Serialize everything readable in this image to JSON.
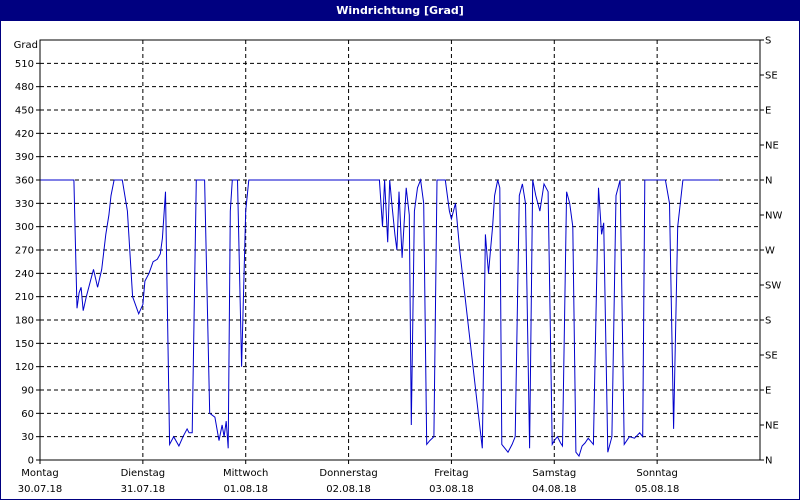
{
  "window": {
    "title": "Windrichtung [Grad]"
  },
  "colors": {
    "titlebar": "#000080",
    "series": "#0000cc",
    "grid": "#000000",
    "frame": "#000080"
  },
  "chart_data": {
    "type": "line",
    "title": "Windrichtung [Grad]",
    "ylabel": "Grad",
    "xlabel": "",
    "ylim": [
      0,
      540
    ],
    "yticks": [
      0,
      30,
      60,
      90,
      120,
      150,
      180,
      210,
      240,
      270,
      300,
      330,
      360,
      390,
      420,
      450,
      480,
      510
    ],
    "y2ticks": [
      {
        "value": 0,
        "label": "N"
      },
      {
        "value": 45,
        "label": "NE"
      },
      {
        "value": 90,
        "label": "E"
      },
      {
        "value": 135,
        "label": "SE"
      },
      {
        "value": 180,
        "label": "S"
      },
      {
        "value": 225,
        "label": "SW"
      },
      {
        "value": 270,
        "label": "W"
      },
      {
        "value": 315,
        "label": "NW"
      },
      {
        "value": 360,
        "label": "N"
      },
      {
        "value": 405,
        "label": "NE"
      },
      {
        "value": 450,
        "label": "E"
      },
      {
        "value": 495,
        "label": "SE"
      },
      {
        "value": 540,
        "label": "S"
      }
    ],
    "xlim": [
      0,
      7
    ],
    "categories": [
      {
        "day": "Montag",
        "date": "30.07.18"
      },
      {
        "day": "Dienstag",
        "date": "31.07.18"
      },
      {
        "day": "Mittwoch",
        "date": "01.08.18"
      },
      {
        "day": "Donnerstag",
        "date": "02.08.18"
      },
      {
        "day": "Freitag",
        "date": "03.08.18"
      },
      {
        "day": "Samstag",
        "date": "04.08.18"
      },
      {
        "day": "Sonntag",
        "date": "05.08.18"
      }
    ],
    "grid": true,
    "legend": null,
    "series": [
      {
        "name": "Windrichtung",
        "x_days": [
          0.0,
          0.33,
          0.34,
          0.36,
          0.38,
          0.4,
          0.42,
          0.45,
          0.49,
          0.52,
          0.56,
          0.6,
          0.64,
          0.67,
          0.69,
          0.72,
          0.74,
          0.76,
          0.8,
          0.85,
          0.9,
          0.96,
          1.0,
          1.02,
          1.06,
          1.1,
          1.14,
          1.17,
          1.19,
          1.22,
          1.26,
          1.3,
          1.35,
          1.39,
          1.43,
          1.45,
          1.48,
          1.52,
          1.56,
          1.6,
          1.65,
          1.7,
          1.74,
          1.77,
          1.79,
          1.81,
          1.83,
          1.85,
          1.87,
          1.89,
          1.92,
          1.96,
          2.0,
          2.03,
          2.07,
          2.09,
          2.12,
          2.14,
          2.15,
          2.18,
          2.2,
          2.22,
          2.25,
          2.28,
          2.3,
          2.32,
          2.34,
          2.36,
          2.38,
          2.42,
          2.44,
          2.46,
          2.48,
          2.51,
          2.54,
          2.56,
          2.6,
          2.64,
          2.67,
          2.7,
          3.0,
          3.3,
          3.33,
          3.35,
          3.38,
          3.4,
          3.42,
          3.45,
          3.47,
          3.49,
          3.52,
          3.56,
          3.59,
          3.61,
          3.64,
          3.67,
          3.7,
          3.73,
          3.76,
          3.79,
          3.83,
          3.86,
          3.9,
          3.94,
          3.98,
          4.0,
          4.04,
          4.08,
          4.3,
          4.33,
          4.36,
          4.38,
          4.4,
          4.42,
          4.45,
          4.47,
          4.49,
          4.52,
          4.55,
          4.59,
          4.62,
          4.66,
          4.69,
          4.72,
          4.76,
          4.79,
          4.82,
          4.86,
          4.9,
          4.94,
          4.98,
          5.0,
          5.03,
          5.06,
          5.08,
          5.12,
          5.15,
          5.18,
          5.21,
          5.24,
          5.27,
          5.3,
          5.33,
          5.38,
          5.43,
          5.46,
          5.48,
          5.52,
          5.56,
          5.6,
          5.64,
          5.68,
          5.73,
          5.78,
          5.83,
          5.86,
          5.88,
          5.9,
          5.93,
          5.96,
          6.0,
          6.02,
          6.05,
          6.08,
          6.12,
          6.16,
          6.2,
          6.25,
          6.3,
          6.34,
          6.38,
          6.42,
          6.46,
          6.5,
          6.52,
          6.56,
          6.6,
          6.63,
          6.7
        ],
        "values": [
          360,
          360,
          300,
          195,
          215,
          222,
          192,
          210,
          230,
          245,
          222,
          245,
          290,
          315,
          340,
          360,
          360,
          360,
          360,
          320,
          210,
          188,
          200,
          230,
          240,
          255,
          258,
          265,
          285,
          345,
          20,
          30,
          18,
          30,
          40,
          35,
          35,
          360,
          360,
          360,
          60,
          55,
          25,
          45,
          30,
          50,
          15,
          320,
          360,
          360,
          360,
          120,
          320,
          360,
          360,
          360,
          360,
          360,
          360,
          360,
          360,
          360,
          360,
          360,
          360,
          360,
          360,
          360,
          360,
          360,
          360,
          360,
          360,
          360,
          360,
          360,
          360,
          360,
          360,
          360,
          360,
          360,
          300,
          360,
          280,
          360,
          330,
          290,
          270,
          345,
          260,
          350,
          315,
          45,
          320,
          350,
          360,
          330,
          20,
          25,
          30,
          360,
          360,
          360,
          320,
          310,
          330,
          270,
          15,
          290,
          240,
          270,
          300,
          340,
          360,
          350,
          20,
          15,
          10,
          20,
          30,
          340,
          355,
          330,
          15,
          360,
          340,
          320,
          355,
          345,
          20,
          25,
          30,
          22,
          18,
          345,
          330,
          300,
          10,
          5,
          18,
          22,
          28,
          20,
          350,
          290,
          305,
          10,
          30,
          340,
          360,
          20,
          30,
          28,
          35,
          30,
          360,
          360,
          360,
          360,
          360,
          360,
          360,
          360,
          330,
          40,
          300,
          360,
          360,
          360,
          360,
          360,
          360,
          360,
          360,
          360,
          360
        ]
      }
    ]
  }
}
